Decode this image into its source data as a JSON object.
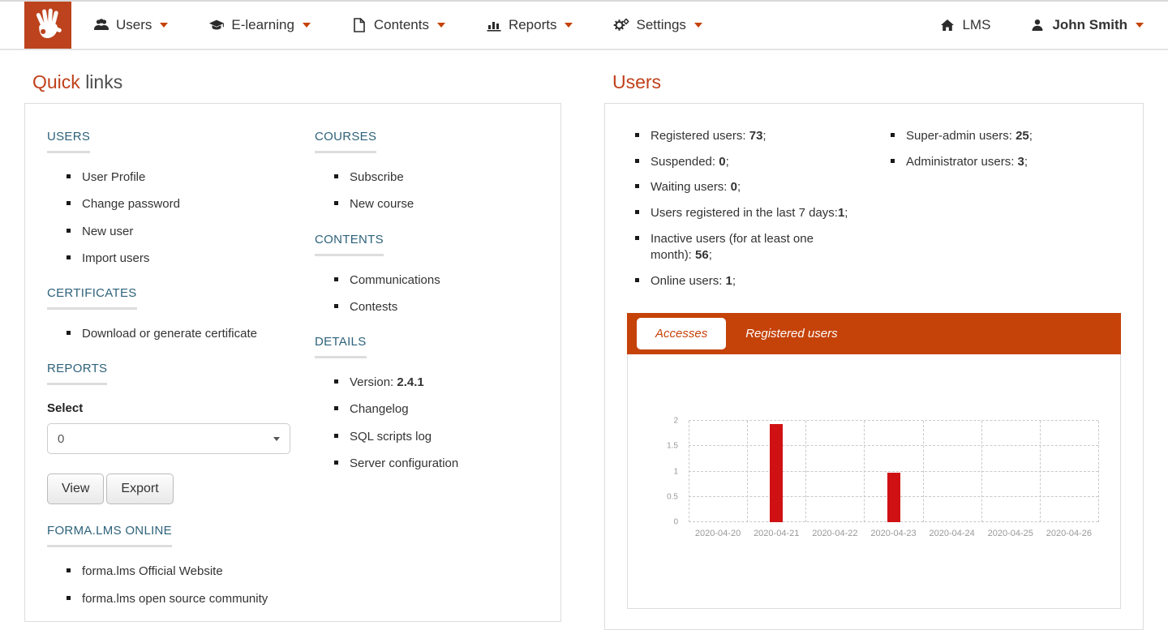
{
  "navbar": {
    "items": [
      {
        "label": "Users",
        "icon": "users-group-icon"
      },
      {
        "label": "E-learning",
        "icon": "graduation-cap-icon"
      },
      {
        "label": "Contents",
        "icon": "document-icon"
      },
      {
        "label": "Reports",
        "icon": "bar-chart-icon"
      },
      {
        "label": "Settings",
        "icon": "gears-icon"
      }
    ],
    "right": [
      {
        "label": "LMS",
        "icon": "home-icon"
      },
      {
        "label": "John Smith",
        "icon": "user-icon"
      }
    ]
  },
  "quick_links": {
    "title_accent": "Quick",
    "title_rest": "links",
    "sections": {
      "users": {
        "heading": "USERS",
        "items": [
          "User Profile",
          "Change password",
          "New user",
          "Import users"
        ]
      },
      "certificates": {
        "heading": "CERTIFICATES",
        "items": [
          "Download or generate certificate"
        ]
      },
      "reports": {
        "heading": "REPORTS",
        "select_label": "Select",
        "select_value": "0",
        "view_label": "View",
        "export_label": "Export"
      },
      "forma_online": {
        "heading": "FORMA.LMS ONLINE",
        "items": [
          "forma.lms Official Website",
          "forma.lms open source community"
        ]
      },
      "courses": {
        "heading": "COURSES",
        "items": [
          "Subscribe",
          "New course"
        ]
      },
      "contents": {
        "heading": "CONTENTS",
        "items": [
          "Communications",
          "Contests"
        ]
      },
      "details": {
        "heading": "DETAILS",
        "items": [
          {
            "label": "Version: ",
            "value": "2.4.1"
          },
          {
            "label": "Changelog",
            "value": ""
          },
          {
            "label": "SQL scripts log",
            "value": ""
          },
          {
            "label": "Server configuration",
            "value": ""
          }
        ]
      }
    }
  },
  "users_panel": {
    "title": "Users",
    "stats_left": [
      {
        "label": "Registered users: ",
        "value": "73",
        "suffix": ";"
      },
      {
        "label": "Suspended: ",
        "value": "0",
        "suffix": ";"
      },
      {
        "label": "Waiting users: ",
        "value": "0",
        "suffix": ";"
      },
      {
        "label": "Users registered in the last 7 days:",
        "value": "1",
        "suffix": ";"
      },
      {
        "label": "Inactive users (for at least one month): ",
        "value": "56",
        "suffix": ";"
      },
      {
        "label": "Online users: ",
        "value": "1",
        "suffix": ";"
      }
    ],
    "stats_right": [
      {
        "label": "Super-admin users: ",
        "value": "25",
        "suffix": ";"
      },
      {
        "label": "Administrator users: ",
        "value": "3",
        "suffix": ";"
      }
    ],
    "tabs": [
      {
        "label": "Accesses",
        "active": true
      },
      {
        "label": "Registered users",
        "active": false
      }
    ]
  },
  "chart_data": {
    "type": "bar",
    "categories": [
      "2020-04-20",
      "2020-04-21",
      "2020-04-22",
      "2020-04-23",
      "2020-04-24",
      "2020-04-25",
      "2020-04-26"
    ],
    "values": [
      0,
      2,
      0,
      1,
      0,
      0,
      0
    ],
    "title": "",
    "xlabel": "",
    "ylabel": "",
    "ylim": [
      0,
      2
    ],
    "yticks": [
      0,
      0.5,
      1,
      1.5,
      2
    ],
    "grid": true,
    "legend": false,
    "bar_color": "#d01114"
  },
  "colors": {
    "accent": "#c54208",
    "logo_bg": "#bc431d",
    "heading_blue": "#2d627a",
    "bar_red": "#d01114",
    "text": "#333333",
    "muted": "#999999",
    "border": "#dddddd"
  }
}
